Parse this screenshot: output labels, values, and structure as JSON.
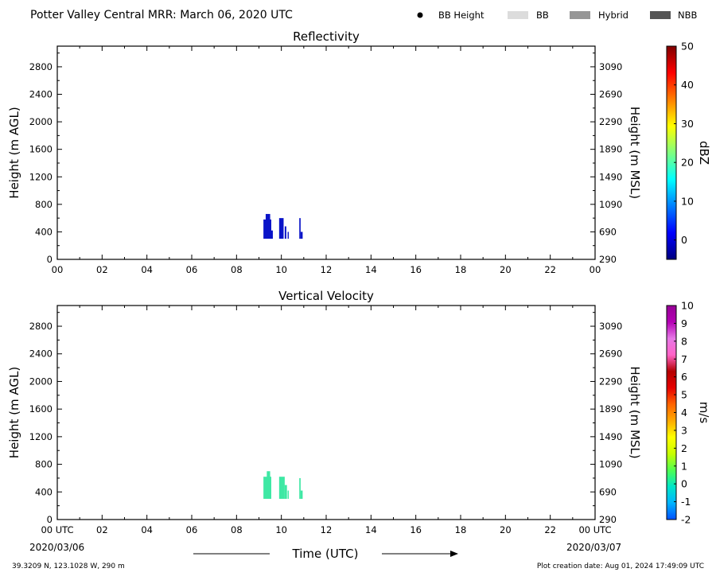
{
  "header": {
    "title": "Potter Valley Central MRR:  March 06, 2020 UTC"
  },
  "legend": [
    {
      "label": "BB Height",
      "symbol": "dot",
      "color": "#000000"
    },
    {
      "label": "BB",
      "symbol": "box",
      "color": "#dcdcdc"
    },
    {
      "label": "Hybrid",
      "symbol": "box",
      "color": "#969696"
    },
    {
      "label": "NBB",
      "symbol": "box",
      "color": "#555555"
    }
  ],
  "footer": {
    "location": "39.3209 N, 123.1028 W, 290 m",
    "creation": "Plot creation date: Aug 01, 2024 17:49:09 UTC",
    "xlabel": "Time (UTC)",
    "start_date": "2020/03/06",
    "end_date": "2020/03/07"
  },
  "chart_data": [
    {
      "type": "heatmap",
      "title": "Reflectivity",
      "ylabel": "Height (m AGL)",
      "y2label": "Height (m MSL)",
      "colorbar_label": "dBZ",
      "xlim": [
        0,
        24
      ],
      "ylim": [
        0,
        3100
      ],
      "x_ticks": [
        "00",
        "02",
        "04",
        "06",
        "08",
        "10",
        "12",
        "14",
        "16",
        "18",
        "20",
        "22",
        "00"
      ],
      "y_ticks": [
        0,
        400,
        800,
        1200,
        1600,
        2000,
        2400,
        2800
      ],
      "y2_ticks": [
        290,
        690,
        1090,
        1490,
        1890,
        2290,
        2690,
        3090
      ],
      "colorbar_range": [
        -5,
        50
      ],
      "colorbar_ticks": [
        "0",
        "10",
        "20",
        "30",
        "40",
        "50"
      ],
      "colorbar_tick_values": [
        0,
        10,
        20,
        30,
        40,
        50
      ],
      "colorbar_colors": [
        "#00007f",
        "#0000ff",
        "#007fff",
        "#00ffff",
        "#7fff7f",
        "#ffff00",
        "#ff7f00",
        "#ff0000",
        "#7f0000"
      ],
      "cells": [
        {
          "t0": 9.2,
          "t1": 9.55,
          "h0": 300,
          "h1": 580,
          "color": "#0a14c8"
        },
        {
          "t0": 9.3,
          "t1": 9.5,
          "h0": 560,
          "h1": 660,
          "color": "#0a14c8"
        },
        {
          "t0": 9.55,
          "t1": 9.62,
          "h0": 300,
          "h1": 420,
          "color": "#0a14c8"
        },
        {
          "t0": 9.9,
          "t1": 10.1,
          "h0": 300,
          "h1": 600,
          "color": "#0a14c8"
        },
        {
          "t0": 10.15,
          "t1": 10.22,
          "h0": 300,
          "h1": 480,
          "color": "#0a14c8"
        },
        {
          "t0": 10.28,
          "t1": 10.33,
          "h0": 300,
          "h1": 400,
          "color": "#0a14c8"
        },
        {
          "t0": 10.8,
          "t1": 10.86,
          "h0": 300,
          "h1": 600,
          "color": "#0a14c8"
        },
        {
          "t0": 10.86,
          "t1": 10.95,
          "h0": 300,
          "h1": 400,
          "color": "#0a14c8"
        }
      ]
    },
    {
      "type": "heatmap",
      "title": "Vertical Velocity",
      "ylabel": "Height (m AGL)",
      "y2label": "Height (m MSL)",
      "colorbar_label": "m/s",
      "xlim": [
        0,
        24
      ],
      "ylim": [
        0,
        3100
      ],
      "x_ticks": [
        "00 UTC",
        "02",
        "04",
        "06",
        "08",
        "10",
        "12",
        "14",
        "16",
        "18",
        "20",
        "22",
        "00 UTC"
      ],
      "y_ticks": [
        0,
        400,
        800,
        1200,
        1600,
        2000,
        2400,
        2800
      ],
      "y2_ticks": [
        290,
        690,
        1090,
        1490,
        1890,
        2290,
        2690,
        3090
      ],
      "colorbar_range": [
        -2,
        10
      ],
      "colorbar_ticks": [
        "-2",
        "-1",
        "0",
        "1",
        "2",
        "3",
        "4",
        "5",
        "6",
        "7",
        "8",
        "9",
        "10"
      ],
      "colorbar_tick_values": [
        -2,
        -1,
        0,
        1,
        2,
        3,
        4,
        5,
        6,
        7,
        8,
        9,
        10
      ],
      "colorbar_colors": [
        "#0050ff",
        "#00b4ff",
        "#00e6c8",
        "#50ff50",
        "#c8ff00",
        "#ffff00",
        "#ffaa00",
        "#ff6400",
        "#e60000",
        "#b40000",
        "#ff64c8",
        "#e678e6",
        "#b400b4",
        "#960096"
      ],
      "cells": [
        {
          "t0": 9.2,
          "t1": 9.55,
          "h0": 300,
          "h1": 620,
          "color": "#3ee8a4"
        },
        {
          "t0": 9.35,
          "t1": 9.5,
          "h0": 600,
          "h1": 700,
          "color": "#3ee8a4"
        },
        {
          "t0": 9.9,
          "t1": 10.15,
          "h0": 300,
          "h1": 620,
          "color": "#3ee8a4"
        },
        {
          "t0": 10.15,
          "t1": 10.25,
          "h0": 300,
          "h1": 500,
          "color": "#3ee8a4"
        },
        {
          "t0": 10.28,
          "t1": 10.33,
          "h0": 300,
          "h1": 420,
          "color": "#3ee8a4"
        },
        {
          "t0": 10.8,
          "t1": 10.86,
          "h0": 300,
          "h1": 600,
          "color": "#3ee8a4"
        },
        {
          "t0": 10.86,
          "t1": 10.95,
          "h0": 300,
          "h1": 420,
          "color": "#3ee8a4"
        }
      ]
    }
  ]
}
